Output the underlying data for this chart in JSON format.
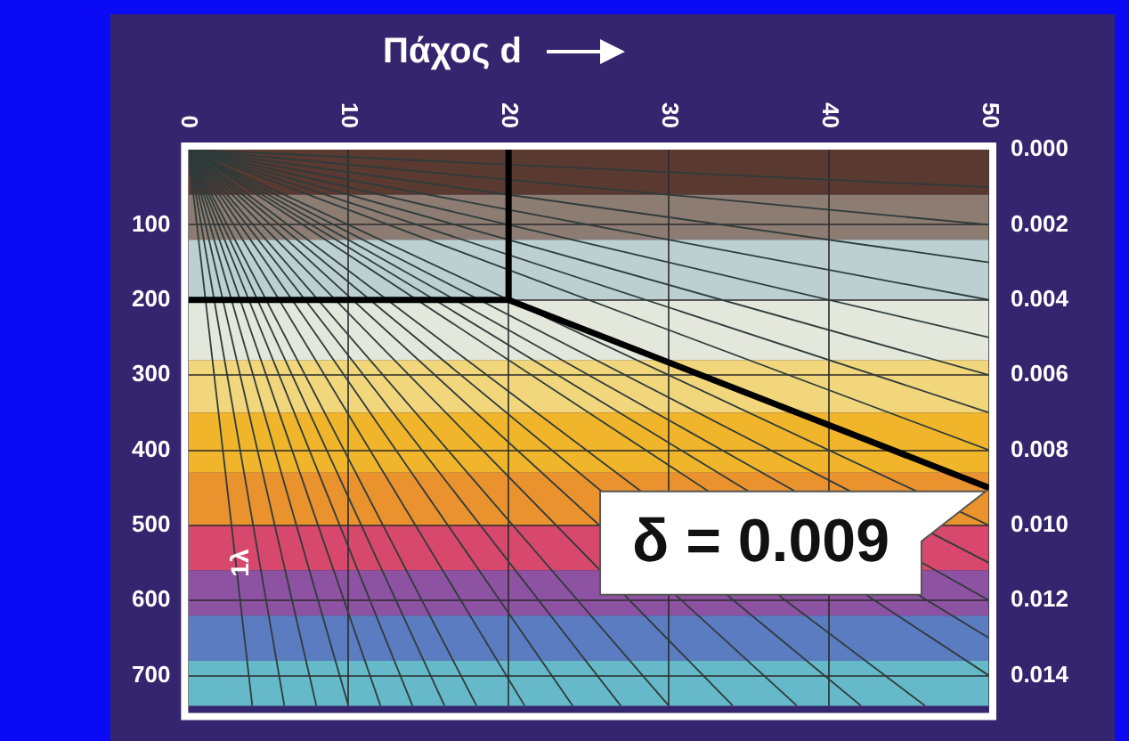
{
  "chart_data": {
    "type": "line",
    "xlabel": "Πάχος d",
    "xlim": [
      0,
      50
    ],
    "xticks": [
      0,
      10,
      20,
      30,
      40,
      50
    ],
    "ylim": [
      740,
      0
    ],
    "yticks": [
      100,
      200,
      300,
      400,
      500,
      600,
      700
    ],
    "y2lim": [
      0.0148,
      0
    ],
    "y2ticks": [
      {
        "value": 0,
        "label": "0.000"
      },
      {
        "value": 0.002,
        "label": "0.002"
      },
      {
        "value": 0.004,
        "label": "0.004"
      },
      {
        "value": 0.006,
        "label": "0.006"
      },
      {
        "value": 0.008,
        "label": "0.008"
      },
      {
        "value": 0.01,
        "label": "0.010"
      },
      {
        "value": 0.012,
        "label": "0.012"
      },
      {
        "value": 0.014,
        "label": "0.014"
      }
    ],
    "grid": true,
    "legend": false,
    "marker": "none",
    "line_style": "solid",
    "annotations": [
      {
        "text": "δ = 0.009",
        "x": 50,
        "y": 450
      },
      {
        "text": "1λ",
        "x": 2,
        "y": 550
      }
    ],
    "bands": [
      {
        "axis": "y",
        "from": 0,
        "to": 60,
        "color": "#5a3a30"
      },
      {
        "axis": "y",
        "from": 60,
        "to": 120,
        "color": "#8c7c72"
      },
      {
        "axis": "y",
        "from": 120,
        "to": 200,
        "color": "#bcd0d2"
      },
      {
        "axis": "y",
        "from": 200,
        "to": 280,
        "color": "#e4e8dc"
      },
      {
        "axis": "y",
        "from": 280,
        "to": 350,
        "color": "#f1d67c"
      },
      {
        "axis": "y",
        "from": 350,
        "to": 430,
        "color": "#f0b52a"
      },
      {
        "axis": "y",
        "from": 430,
        "to": 500,
        "color": "#e9922e"
      },
      {
        "axis": "y",
        "from": 500,
        "to": 560,
        "color": "#d8486c"
      },
      {
        "axis": "y",
        "from": 560,
        "to": 620,
        "color": "#8e52a2"
      },
      {
        "axis": "y",
        "from": 620,
        "to": 680,
        "color": "#5c7cc2"
      },
      {
        "axis": "y",
        "from": 680,
        "to": 740,
        "color": "#66b9c9"
      }
    ],
    "series": [
      {
        "color": "#000000",
        "x": [
          20,
          20,
          0
        ],
        "values": [
          0,
          200,
          200
        ]
      },
      {
        "color": "#000000",
        "x": [
          20,
          50
        ],
        "values": [
          200,
          450
        ]
      },
      {
        "color": "#2e3b3b",
        "x": [
          0,
          50
        ],
        "values": [
          0,
          50
        ]
      },
      {
        "color": "#2e3b3b",
        "x": [
          0,
          50
        ],
        "values": [
          0,
          100
        ]
      },
      {
        "color": "#2e3b3b",
        "x": [
          0,
          50
        ],
        "values": [
          0,
          150
        ]
      },
      {
        "color": "#2e3b3b",
        "x": [
          0,
          50
        ],
        "values": [
          0,
          200
        ]
      },
      {
        "color": "#2e3b3b",
        "x": [
          0,
          50
        ],
        "values": [
          0,
          250
        ]
      },
      {
        "color": "#2e3b3b",
        "x": [
          0,
          50
        ],
        "values": [
          0,
          300
        ]
      },
      {
        "color": "#2e3b3b",
        "x": [
          0,
          50
        ],
        "values": [
          0,
          350
        ]
      },
      {
        "color": "#2e3b3b",
        "x": [
          0,
          50
        ],
        "values": [
          0,
          400
        ]
      },
      {
        "color": "#2e3b3b",
        "x": [
          0,
          50
        ],
        "values": [
          0,
          500
        ]
      },
      {
        "color": "#2e3b3b",
        "x": [
          0,
          50
        ],
        "values": [
          0,
          550
        ]
      },
      {
        "color": "#2e3b3b",
        "x": [
          0,
          50
        ],
        "values": [
          0,
          600
        ]
      },
      {
        "color": "#2e3b3b",
        "x": [
          0,
          50
        ],
        "values": [
          0,
          650
        ]
      },
      {
        "color": "#2e3b3b",
        "x": [
          0,
          50
        ],
        "values": [
          0,
          700
        ]
      },
      {
        "color": "#2e3b3b",
        "x": [
          0,
          46
        ],
        "values": [
          0,
          740
        ]
      },
      {
        "color": "#2e3b3b",
        "x": [
          0,
          42
        ],
        "values": [
          0,
          740
        ]
      },
      {
        "color": "#2e3b3b",
        "x": [
          0,
          38
        ],
        "values": [
          0,
          740
        ]
      },
      {
        "color": "#2e3b3b",
        "x": [
          0,
          34
        ],
        "values": [
          0,
          740
        ]
      },
      {
        "color": "#2e3b3b",
        "x": [
          0,
          30
        ],
        "values": [
          0,
          740
        ]
      },
      {
        "color": "#2e3b3b",
        "x": [
          0,
          27
        ],
        "values": [
          0,
          740
        ]
      },
      {
        "color": "#2e3b3b",
        "x": [
          0,
          24
        ],
        "values": [
          0,
          740
        ]
      },
      {
        "color": "#2e3b3b",
        "x": [
          0,
          21
        ],
        "values": [
          0,
          740
        ]
      },
      {
        "color": "#2e3b3b",
        "x": [
          0,
          18
        ],
        "values": [
          0,
          740
        ]
      },
      {
        "color": "#2e3b3b",
        "x": [
          0,
          16
        ],
        "values": [
          0,
          740
        ]
      },
      {
        "color": "#2e3b3b",
        "x": [
          0,
          14
        ],
        "values": [
          0,
          740
        ]
      },
      {
        "color": "#2e3b3b",
        "x": [
          0,
          12
        ],
        "values": [
          0,
          740
        ]
      },
      {
        "color": "#2e3b3b",
        "x": [
          0,
          10
        ],
        "values": [
          0,
          740
        ]
      },
      {
        "color": "#2e3b3b",
        "x": [
          0,
          8
        ],
        "values": [
          0,
          740
        ]
      },
      {
        "color": "#2e3b3b",
        "x": [
          0,
          6
        ],
        "values": [
          0,
          740
        ]
      },
      {
        "color": "#2e3b3b",
        "x": [
          0,
          4
        ],
        "values": [
          0,
          740
        ]
      }
    ]
  }
}
